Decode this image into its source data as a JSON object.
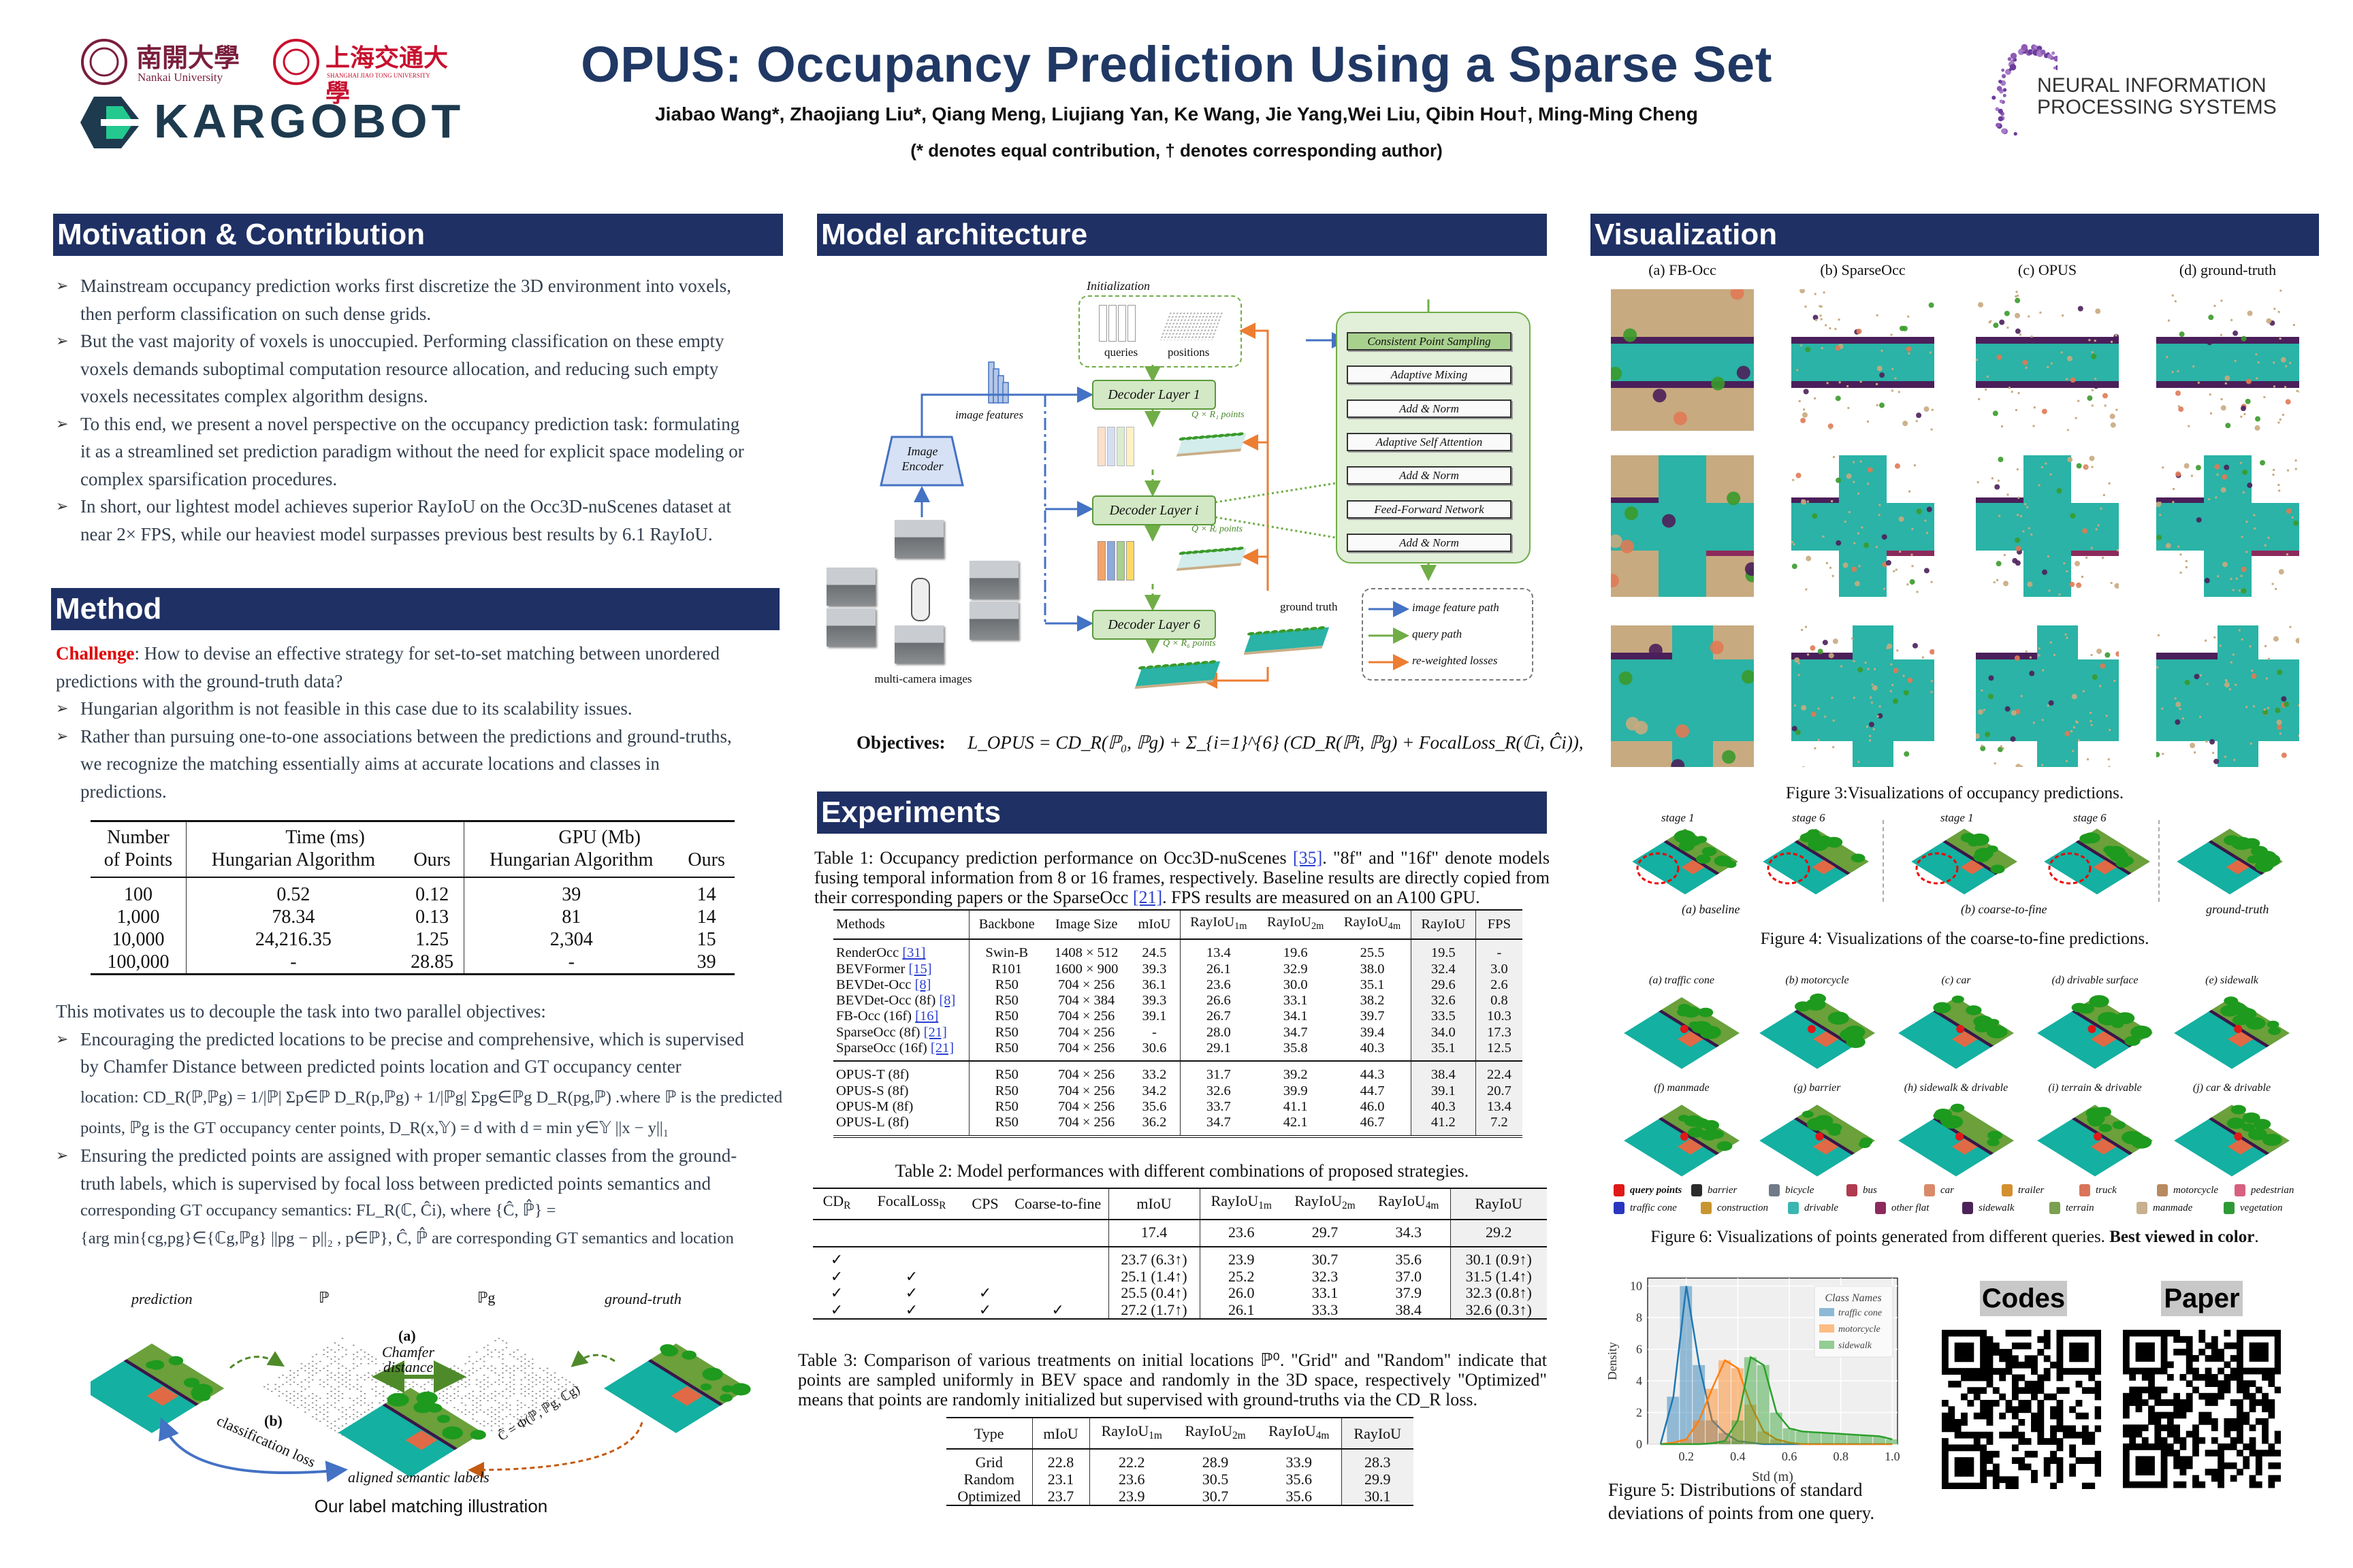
{
  "header": {
    "title": "OPUS: Occupancy Prediction Using a Sparse Set",
    "authors": "Jiabao Wang*,  Zhaojiang Liu*, Qiang Meng, Liujiang Yan, Ke Wang, Jie Yang,Wei Liu, Qibin Hou†, Ming-Ming Cheng",
    "note": "(* denotes equal contribution, † denotes corresponding author)",
    "logos": {
      "nankai": "Nankai University",
      "nankai_cn": "南開大學",
      "sjtu": "SHANGHAI JIAO TONG UNIVERSITY",
      "sjtu_cn": "上海交通大學",
      "kargobot": "KARGOBOT",
      "neurips_line1": "NEURAL INFORMATION",
      "neurips_line2": "PROCESSING SYSTEMS"
    },
    "colors": {
      "title": "#203864",
      "bar": "#1f3064",
      "challenge": "#e00000"
    }
  },
  "motivation": {
    "heading": "Motivation & Contribution",
    "bullets": [
      [
        "Mainstream occupancy prediction works first discretize the 3D environment  into voxels,",
        "then perform  classification on such dense grids."
      ],
      [
        "But the vast majority of voxels is unoccupied. Performing classification on these empty",
        "voxels demands suboptimal computation resource allocation, and reducing such empty",
        "voxels necessitates complex algorithm designs."
      ],
      [
        "To this end, we present a novel perspective on the occupancy prediction task: formulating",
        "it as a streamlined set prediction paradigm without the need for explicit space modeling or",
        "complex sparsification procedures."
      ],
      [
        "In short, our lightest model achieves superior RayIoU on the Occ3D-nuScenes dataset at",
        "near 2× FPS, while our heaviest model surpasses previous best results by 6.1 RayIoU."
      ]
    ]
  },
  "method": {
    "heading": "Method",
    "challenge_label": "Challenge",
    "challenge_lines": [
      ": How to devise an effective strategy for set-to-set matching between unordered",
      "predictions with the ground-truth data?"
    ],
    "bullets": [
      [
        "Hungarian algorithm is not feasible in this case due to its scalability issues."
      ],
      [
        "Rather than pursuing one-to-one associations between the predictions and ground-truths,",
        "we recognize the matching essentially aims at accurate locations and classes in",
        "predictions."
      ]
    ],
    "table": {
      "head_top": [
        "Number",
        "Time (ms)",
        "GPU (Mb)"
      ],
      "head_bottom": [
        "of Points",
        "Hungarian Algorithm",
        "Ours",
        "Hungarian Algorithm",
        "Ours"
      ],
      "rows": [
        [
          "100",
          "0.52",
          "0.12",
          "39",
          "14"
        ],
        [
          "1,000",
          "78.34",
          "0.13",
          "81",
          "14"
        ],
        [
          "10,000",
          "24,216.35",
          "1.25",
          "2,304",
          "15"
        ],
        [
          "100,000",
          "-",
          "28.85",
          "-",
          "39"
        ]
      ]
    },
    "intro": "This motivates  us to decouple the task into two parallel objectives:",
    "bullets2": [
      [
        "Encouraging the predicted locations to be precise and comprehensive,  which is supervised",
        "by Chamfer Distance between predicted points location and GT occupancy center",
        "location: CD_R(ℙ,ℙg) = 1/|ℙ| Σp∈ℙ D_R(p,ℙg) + 1/|ℙg| Σpg∈ℙg D_R(pg,ℙ) .where ℙ is the predicted",
        "points, ℙg is the GT occupancy center points,  D_R(x,𝕐) = d with d = min y∈𝕐 ||x − y||₁"
      ],
      [
        "Ensuring the predicted points are assigned with proper semantic classes from the ground-",
        "truth labels, which is supervised by focal loss between predicted points semantics and",
        "corresponding GT occupancy semantics: FL_R(ℂ, Ĉi), where {Ĉ, ℙ̂} =",
        "{arg min{cg,pg}∈{ℂg,ℙg} ||pg − p||₂ , p∈ℙ}, Ĉ, ℙ̂  are corresponding GT semantics and location"
      ]
    ],
    "illustration": {
      "prediction": "prediction",
      "P": "ℙ",
      "Pg": "ℙg",
      "ground_truth": "ground-truth",
      "a": "(a)",
      "chamfer": "Chamfer",
      "distance": "distance",
      "b": "(b)",
      "cls_loss": "classification loss",
      "formula": "Ĉ = Φ(ℙ, ℙg, ℂg)",
      "aligned": "aligned semantic labels",
      "caption": "Our label matching illustration"
    }
  },
  "architecture": {
    "heading": "Model architecture",
    "initialization": "Initialization",
    "queries": "queries",
    "positions": "positions",
    "image_features": "image features",
    "image_encoder_1": "Image",
    "image_encoder_2": "Encoder",
    "decoder_1": "Decoder Layer 1",
    "decoder_i": "Decoder Layer i",
    "decoder_6": "Decoder Layer 6",
    "points_1": "Q × R₁ points",
    "points_i": "Q × Rᵢ points",
    "points_6": "Q × R₆ points",
    "multi_camera": "multi-camera images",
    "ground_truth": "ground truth",
    "layer_blocks": [
      "Consistent Point Sampling",
      "Adaptive Mixing",
      "Add & Norm",
      "Adaptive Self Attention",
      "Add & Norm",
      "Feed-Forward Network",
      "Add & Norm"
    ],
    "legend": [
      "image feature path",
      "query path",
      "re-weighted losses"
    ],
    "legend_colors": [
      "#4472c4",
      "#70ad47",
      "#ed7d31"
    ],
    "objectives_label": "Objectives:",
    "objectives_formula": "L_OPUS = CD_R(ℙ₀, ℙg) + Σ_{i=1}^{6} (CD_R(ℙi, ℙg) + FocalLoss_R(ℂi, Ĉi)),"
  },
  "experiments": {
    "heading": "Experiments",
    "table1": {
      "caption_parts": [
        "Table 1: Occupancy prediction performance on Occ3D-nuScenes ",
        "[35]",
        ". \"8f\" and \"16f\" denote models fusing temporal information from 8 or 16 frames, respectively. Baseline results are directly copied from their corresponding papers or the SparseOcc ",
        "[21]",
        ". FPS results are measured on an A100 GPU."
      ],
      "headers": [
        {
          "t": "Methods"
        },
        {
          "t": "Backbone"
        },
        {
          "t": "Image Size"
        },
        {
          "t": "mIoU"
        },
        {
          "t": "RayIoU",
          "s": "1m"
        },
        {
          "t": "RayIoU",
          "s": "2m"
        },
        {
          "t": "RayIoU",
          "s": "4m"
        },
        {
          "t": "RayIoU"
        },
        {
          "t": "FPS"
        }
      ],
      "baselines": [
        {
          "m": "RenderOcc ",
          "c": "[31]",
          "v": [
            "Swin-B",
            "1408 × 512",
            "24.5",
            "13.4",
            "19.6",
            "25.5",
            "19.5",
            "-"
          ]
        },
        {
          "m": "BEVFormer ",
          "c": "[15]",
          "v": [
            "R101",
            "1600 × 900",
            "39.3",
            "26.1",
            "32.9",
            "38.0",
            "32.4",
            "3.0"
          ]
        },
        {
          "m": "BEVDet-Occ ",
          "c": "[8]",
          "v": [
            "R50",
            "704 × 256",
            "36.1",
            "23.6",
            "30.0",
            "35.1",
            "29.6",
            "2.6"
          ]
        },
        {
          "m": "BEVDet-Occ (8f) ",
          "c": "[8]",
          "v": [
            "R50",
            "704 × 384",
            "39.3",
            "26.6",
            "33.1",
            "38.2",
            "32.6",
            "0.8"
          ]
        },
        {
          "m": "FB-Occ (16f) ",
          "c": "[16]",
          "v": [
            "R50",
            "704 × 256",
            "39.1",
            "26.7",
            "34.1",
            "39.7",
            "33.5",
            "10.3"
          ]
        },
        {
          "m": "SparseOcc (8f) ",
          "c": "[21]",
          "v": [
            "R50",
            "704 × 256",
            "-",
            "28.0",
            "34.7",
            "39.4",
            "34.0",
            "17.3"
          ]
        },
        {
          "m": "SparseOcc (16f) ",
          "c": "[21]",
          "v": [
            "R50",
            "704 × 256",
            "30.6",
            "29.1",
            "35.8",
            "40.3",
            "35.1",
            "12.5"
          ]
        }
      ],
      "ours": [
        {
          "m": "OPUS-T (8f)",
          "c": "",
          "v": [
            "R50",
            "704 × 256",
            "33.2",
            "31.7",
            "39.2",
            "44.3",
            "38.4",
            "22.4"
          ]
        },
        {
          "m": "OPUS-S (8f)",
          "c": "",
          "v": [
            "R50",
            "704 × 256",
            "34.2",
            "32.6",
            "39.9",
            "44.7",
            "39.1",
            "20.7"
          ]
        },
        {
          "m": "OPUS-M (8f)",
          "c": "",
          "v": [
            "R50",
            "704 × 256",
            "35.6",
            "33.7",
            "41.1",
            "46.0",
            "40.3",
            "13.4"
          ]
        },
        {
          "m": "OPUS-L (8f)",
          "c": "",
          "v": [
            "R50",
            "704 × 256",
            "36.2",
            "34.7",
            "42.1",
            "46.7",
            "41.2",
            "7.2"
          ]
        }
      ]
    },
    "table2": {
      "caption": "Table 2: Model performances with different combinations of proposed strategies.",
      "headers": [
        {
          "t": "CD",
          "s": "R"
        },
        {
          "t": "FocalLoss",
          "s": "R"
        },
        {
          "t": "CPS"
        },
        {
          "t": "Coarse-to-fine"
        },
        {
          "t": "mIoU"
        },
        {
          "t": "RayIoU",
          "s": "1m"
        },
        {
          "t": "RayIoU",
          "s": "2m"
        },
        {
          "t": "RayIoU",
          "s": "4m"
        },
        {
          "t": "RayIoU"
        }
      ],
      "baseline": [
        "",
        "",
        "",
        "",
        "17.4",
        "23.6",
        "29.7",
        "34.3",
        "29.2"
      ],
      "rows": [
        [
          "✓",
          "",
          "",
          "",
          "23.7 (6.3↑)",
          "23.9",
          "30.7",
          "35.6",
          "30.1 (0.9↑)"
        ],
        [
          "✓",
          "✓",
          "",
          "",
          "25.1 (1.4↑)",
          "25.2",
          "32.3",
          "37.0",
          "31.5 (1.4↑)"
        ],
        [
          "✓",
          "✓",
          "✓",
          "",
          "25.5 (0.4↑)",
          "26.0",
          "33.1",
          "37.9",
          "32.3 (0.8↑)"
        ],
        [
          "✓",
          "✓",
          "✓",
          "✓",
          "27.2 (1.7↑)",
          "26.1",
          "33.3",
          "38.4",
          "32.6 (0.3↑)"
        ]
      ]
    },
    "table3": {
      "caption": "Table 3: Comparison of various treatments on initial locations ℙ⁰. \"Grid\" and \"Random\" indicate that points are sampled uniformly in BEV space and randomly in the 3D space, respectively \"Optimized\" means that points are randomly initialized but supervised with ground-truths via the CD_R loss.",
      "headers": [
        {
          "t": "Type"
        },
        {
          "t": "mIoU"
        },
        {
          "t": "RayIoU",
          "s": "1m"
        },
        {
          "t": "RayIoU",
          "s": "2m"
        },
        {
          "t": "RayIoU",
          "s": "4m"
        },
        {
          "t": "RayIoU"
        }
      ],
      "rows": [
        [
          "Grid",
          "22.8",
          "22.2",
          "28.9",
          "33.9",
          "28.3"
        ],
        [
          "Random",
          "23.1",
          "23.6",
          "30.5",
          "35.6",
          "29.9"
        ],
        [
          "Optimized",
          "23.7",
          "23.9",
          "30.7",
          "35.6",
          "30.1"
        ]
      ]
    }
  },
  "visualization": {
    "heading": "Visualization",
    "fig3_cols": [
      "(a) FB-Occ",
      "(b) SparseOcc",
      "(c) OPUS",
      "(d) ground-truth"
    ],
    "fig3_caption": "Figure 3:Visualizations of occupancy predictions.",
    "fig4_stages": [
      "stage 1",
      "stage 6",
      "stage 1",
      "stage 6"
    ],
    "fig4_groups": [
      "(a) baseline",
      "(b) coarse-to-fine",
      "ground-truth"
    ],
    "fig4_caption": "Figure 4: Visualizations of the coarse-to-fine predictions.",
    "fig6_labels": [
      "(a) traffic cone",
      "(b) motorcycle",
      "(c) car",
      "(d) drivable surface",
      "(e) sidewalk",
      "(f) manmade",
      "(g) barrier",
      "(h) sidewalk & drivable",
      "(i) terrain & drivable",
      "(j) car & drivable"
    ],
    "fig6_legend": [
      {
        "n": "query points",
        "c": "#e01818"
      },
      {
        "n": "barrier",
        "c": "#2b2b2b"
      },
      {
        "n": "bicycle",
        "c": "#707a88"
      },
      {
        "n": "bus",
        "c": "#b03a50"
      },
      {
        "n": "car",
        "c": "#d98a6a"
      },
      {
        "n": "trailer",
        "c": "#d49030"
      },
      {
        "n": "truck",
        "c": "#d9745a"
      },
      {
        "n": "motorcycle",
        "c": "#b88a60"
      },
      {
        "n": "pedestrian",
        "c": "#d86080"
      },
      {
        "n": "traffic cone",
        "c": "#2a35c0"
      },
      {
        "n": "construction",
        "c": "#c89530"
      },
      {
        "n": "drivable",
        "c": "#3ab5b0"
      },
      {
        "n": "other flat",
        "c": "#8c2a5c"
      },
      {
        "n": "sidewalk",
        "c": "#4b2358"
      },
      {
        "n": "terrain",
        "c": "#7aa050"
      },
      {
        "n": "manmade",
        "c": "#c8b090"
      },
      {
        "n": "vegetation",
        "c": "#2f9a35"
      }
    ],
    "fig6_caption": "Figure 6: Visualizations of points generated from different queries. ",
    "fig6_caption_bold": "Best viewed in color",
    "fig6_caption_end": ".",
    "fig5_caption_lines": [
      "Figure 5: Distributions of standard",
      "deviations of points from one query."
    ],
    "codes_label": "Codes",
    "paper_label": "Paper"
  },
  "chart_data": {
    "type": "bar",
    "title": "",
    "xlabel": "Std (m)",
    "ylabel": "Density",
    "xlim": [
      0.1,
      1.0
    ],
    "ylim": [
      0,
      10.5
    ],
    "xticks": [
      "0.2",
      "0.4",
      "0.6",
      "0.8",
      "1.0"
    ],
    "yticks": [
      "0",
      "2",
      "4",
      "6",
      "8",
      "10"
    ],
    "grid": true,
    "legend_title": "Class Names",
    "legend_position": "top-right",
    "x": [
      0.1,
      0.15,
      0.2,
      0.25,
      0.3,
      0.35,
      0.4,
      0.45,
      0.5,
      0.55,
      0.6,
      0.65,
      0.7,
      0.75,
      0.8,
      0.85,
      0.9,
      0.95,
      1.0
    ],
    "series": [
      {
        "name": "traffic cone",
        "color": "#1f77b4",
        "values": [
          0,
          3.0,
          10.0,
          5.0,
          1.5,
          0.7,
          0.2,
          0.1,
          0,
          0,
          0,
          0,
          0,
          0,
          0,
          0,
          0,
          0,
          0
        ]
      },
      {
        "name": "motorcycle",
        "color": "#ff7f0e",
        "values": [
          0,
          0.1,
          0.3,
          1.5,
          3.5,
          5.3,
          4.8,
          2.5,
          0.8,
          0.3,
          0.1,
          0,
          0,
          0,
          0,
          0,
          0,
          0,
          0
        ]
      },
      {
        "name": "sidewalk",
        "color": "#2ca02c",
        "values": [
          0,
          0,
          0,
          0,
          0.05,
          0.2,
          1.5,
          5.5,
          5.0,
          2.0,
          1.0,
          0.8,
          0.75,
          0.7,
          0.65,
          0.6,
          0.55,
          0.5,
          0.3
        ]
      }
    ]
  }
}
